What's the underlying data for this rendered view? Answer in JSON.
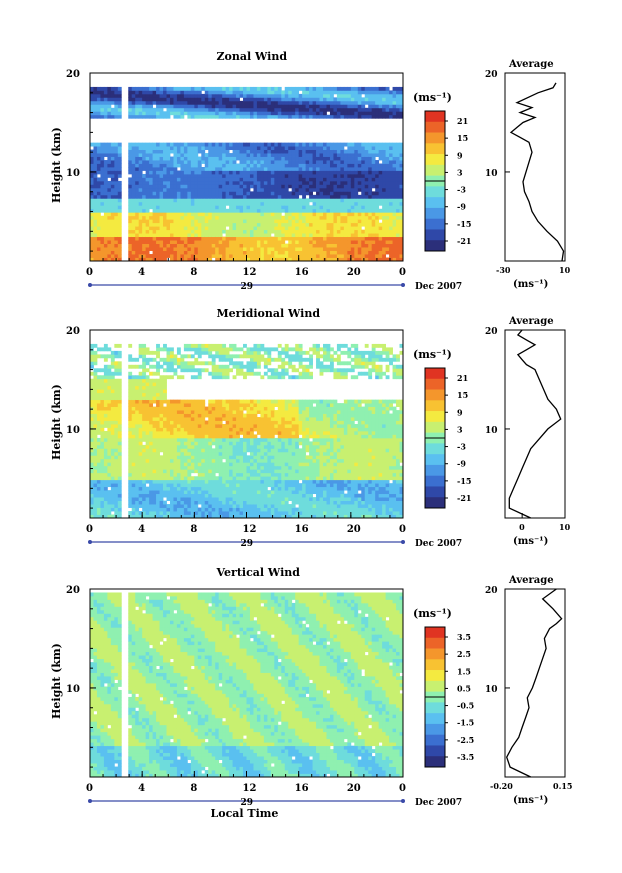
{
  "x_axis": {
    "ticks": [
      "0",
      "4",
      "8",
      "12",
      "16",
      "20",
      "0"
    ],
    "date_day": "29",
    "date_label": "Dec 2007",
    "xlabel": "Local Time"
  },
  "height_axis": {
    "ylabel": "Height (km)",
    "ticks": [
      "10",
      "20"
    ]
  },
  "colorbar_unit": "(ms⁻¹)",
  "colormap": [
    "#2b2f7a",
    "#2f48a8",
    "#3b6fd0",
    "#4a98e6",
    "#5ac0f0",
    "#6edcdc",
    "#8ff0b0",
    "#c8f070",
    "#f4ea40",
    "#f8c232",
    "#f4962c",
    "#ec6428",
    "#e03422"
  ],
  "panels": [
    {
      "title": "Zonal Wind",
      "colorbar_ticks": [
        "21",
        "15",
        "9",
        "3",
        "-3",
        "-9",
        "-15",
        "-21"
      ],
      "colorbar_range": [
        -24,
        24
      ],
      "avg_title": "Average",
      "avg_xticks": [
        "-30",
        "10"
      ],
      "avg_xrange": [
        -30,
        10
      ],
      "avg_unit": "(ms⁻¹)"
    },
    {
      "title": "Meridional Wind",
      "colorbar_ticks": [
        "21",
        "15",
        "9",
        "3",
        "-3",
        "-9",
        "-15",
        "-21"
      ],
      "colorbar_range": [
        -24,
        24
      ],
      "avg_title": "Average",
      "avg_xticks": [
        "0",
        "10"
      ],
      "avg_xrange": [
        -4,
        10
      ],
      "avg_unit": "(ms⁻¹)"
    },
    {
      "title": "Vertical Wind",
      "colorbar_ticks": [
        "3.5",
        "2.5",
        "1.5",
        "0.5",
        "-0.5",
        "-1.5",
        "-2.5",
        "-3.5"
      ],
      "colorbar_range": [
        -4,
        4
      ],
      "avg_title": "Average",
      "avg_xticks": [
        "-0.20",
        "0.15"
      ],
      "avg_xrange": [
        -0.2,
        0.15
      ],
      "avg_unit": "(ms⁻¹)"
    }
  ],
  "chart_data": [
    {
      "type": "heatmap",
      "title": "Zonal Wind",
      "xlabel": "",
      "ylabel": "Height (km)",
      "xlim": [
        0,
        24
      ],
      "ylim": [
        1,
        20
      ],
      "colorbar_label": "(ms⁻¹)",
      "colorbar_range": [
        -24,
        24
      ],
      "description_layers": [
        {
          "height_km": [
            1,
            3.5
          ],
          "value": 15
        },
        {
          "height_km": [
            3.5,
            6
          ],
          "value": 7
        },
        {
          "height_km": [
            6,
            8
          ],
          "value": -6
        },
        {
          "height_km": [
            8,
            10
          ],
          "value": -18
        },
        {
          "height_km": [
            10,
            13
          ],
          "value": -12
        },
        {
          "height_km": [
            16,
            18
          ],
          "value": -15
        }
      ]
    },
    {
      "type": "line",
      "title": "Average",
      "xlabel": "(ms⁻¹)",
      "ylabel": "Height (km)",
      "xlim": [
        -30,
        10
      ],
      "ylim": [
        1,
        20
      ],
      "x": [
        8,
        9,
        5,
        -2,
        -8,
        -12,
        -14,
        -17,
        -18,
        -16,
        -14,
        -12,
        -14,
        -20,
        -26,
        -22,
        -18,
        -10,
        -20,
        -12,
        -22,
        -8,
        2,
        4
      ],
      "y": [
        1,
        2,
        3,
        4,
        5,
        6,
        7,
        8,
        9,
        10,
        11,
        12,
        13,
        13.5,
        14,
        14.5,
        15,
        15.5,
        16,
        16.5,
        17,
        18,
        18.5,
        19
      ]
    },
    {
      "type": "heatmap",
      "title": "Meridional Wind",
      "xlabel": "",
      "ylabel": "Height (km)",
      "xlim": [
        0,
        24
      ],
      "ylim": [
        1,
        20
      ],
      "colorbar_label": "(ms⁻¹)",
      "colorbar_range": [
        -24,
        24
      ],
      "description_layers": [
        {
          "height_km": [
            1,
            5
          ],
          "value": -6
        },
        {
          "height_km": [
            5,
            9
          ],
          "value": 1
        },
        {
          "height_km": [
            9,
            13
          ],
          "value": 8
        },
        {
          "height_km": [
            13,
            15
          ],
          "value": 4
        },
        {
          "height_km": [
            16,
            18
          ],
          "value": 0
        }
      ]
    },
    {
      "type": "line",
      "title": "Average",
      "xlabel": "(ms⁻¹)",
      "ylabel": "Height (km)",
      "xlim": [
        -4,
        10
      ],
      "ylim": [
        1,
        20
      ],
      "x": [
        2,
        -3,
        -3,
        -2,
        -1,
        0,
        1,
        2,
        4,
        6,
        9,
        8,
        6,
        5,
        4,
        3,
        1,
        0,
        -1,
        1,
        3,
        1,
        -1,
        0
      ],
      "y": [
        1,
        2,
        3,
        4,
        5,
        6,
        7,
        8,
        9,
        10,
        11,
        12,
        13,
        14,
        15,
        16,
        16.5,
        17,
        17.5,
        18,
        18.5,
        19,
        19.5,
        20
      ]
    },
    {
      "type": "heatmap",
      "title": "Vertical Wind",
      "xlabel": "Local Time",
      "ylabel": "Height (km)",
      "xlim": [
        0,
        24
      ],
      "ylim": [
        1,
        20
      ],
      "colorbar_label": "(ms⁻¹)",
      "colorbar_range": [
        -4,
        4
      ],
      "description_layers": [
        {
          "height_km": [
            1,
            20
          ],
          "value": 0.2
        }
      ]
    },
    {
      "type": "line",
      "title": "Average",
      "xlabel": "(ms⁻¹)",
      "ylabel": "Height (km)",
      "xlim": [
        -0.2,
        0.15
      ],
      "ylim": [
        1,
        20
      ],
      "x": [
        -0.05,
        -0.17,
        -0.19,
        -0.16,
        -0.12,
        -0.1,
        -0.08,
        -0.06,
        -0.07,
        -0.04,
        -0.02,
        0.0,
        0.02,
        0.04,
        0.03,
        0.06,
        0.1,
        0.13,
        0.08,
        0.02,
        0.1
      ],
      "y": [
        1,
        2,
        3,
        4,
        5,
        6,
        7,
        8,
        9,
        10,
        11,
        12,
        13,
        14,
        15,
        16,
        16.5,
        17,
        18,
        19,
        20
      ]
    }
  ]
}
